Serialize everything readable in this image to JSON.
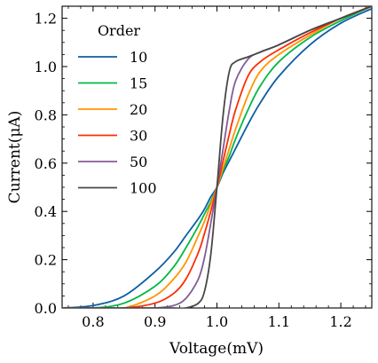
{
  "chart_data": {
    "type": "line",
    "xlabel": "Voltage(mV)",
    "ylabel": "Current(μA)",
    "xlim": [
      0.75,
      1.25
    ],
    "ylim": [
      0,
      1.25
    ],
    "x_ticks": [
      "0.8",
      "0.9",
      "1.0",
      "1.1",
      "1.2"
    ],
    "y_ticks": [
      "0.0",
      "0.2",
      "0.4",
      "0.6",
      "0.8",
      "1.0",
      "1.2"
    ],
    "legend": {
      "title": "Order",
      "position": "top-left"
    },
    "grid": false,
    "x": [
      0.75,
      0.8,
      0.85,
      0.9,
      0.93,
      0.95,
      0.97,
      0.98,
      0.99,
      1.0,
      1.01,
      1.02,
      1.03,
      1.05,
      1.07,
      1.1,
      1.15,
      1.2,
      1.25
    ],
    "series": [
      {
        "name": "10",
        "color": "#0C5DA5",
        "values": [
          0.0,
          0.01,
          0.05,
          0.15,
          0.23,
          0.3,
          0.37,
          0.41,
          0.46,
          0.5,
          0.56,
          0.61,
          0.66,
          0.76,
          0.85,
          0.96,
          1.09,
          1.18,
          1.24
        ]
      },
      {
        "name": "15",
        "color": "#00B945",
        "values": [
          0.0,
          0.0,
          0.02,
          0.09,
          0.17,
          0.25,
          0.34,
          0.39,
          0.44,
          0.5,
          0.57,
          0.63,
          0.7,
          0.82,
          0.92,
          1.02,
          1.12,
          1.19,
          1.25
        ]
      },
      {
        "name": "20",
        "color": "#FF9500",
        "values": [
          0.0,
          0.0,
          0.0,
          0.05,
          0.12,
          0.19,
          0.3,
          0.36,
          0.43,
          0.5,
          0.58,
          0.66,
          0.74,
          0.88,
          0.98,
          1.05,
          1.13,
          1.2,
          1.25
        ]
      },
      {
        "name": "30",
        "color": "#FF2C00",
        "values": [
          0.0,
          0.0,
          0.0,
          0.02,
          0.06,
          0.12,
          0.23,
          0.31,
          0.4,
          0.5,
          0.61,
          0.72,
          0.82,
          0.96,
          1.02,
          1.07,
          1.14,
          1.2,
          1.25
        ]
      },
      {
        "name": "50",
        "color": "#845B97",
        "values": [
          0.0,
          0.0,
          0.0,
          0.0,
          0.01,
          0.04,
          0.12,
          0.21,
          0.35,
          0.5,
          0.66,
          0.82,
          0.94,
          1.03,
          1.06,
          1.09,
          1.15,
          1.2,
          1.25
        ]
      },
      {
        "name": "100",
        "color": "#474747",
        "values": [
          0.0,
          0.0,
          0.0,
          0.0,
          0.0,
          0.0,
          0.02,
          0.07,
          0.22,
          0.5,
          0.8,
          0.98,
          1.02,
          1.04,
          1.06,
          1.09,
          1.15,
          1.2,
          1.25
        ]
      }
    ]
  }
}
